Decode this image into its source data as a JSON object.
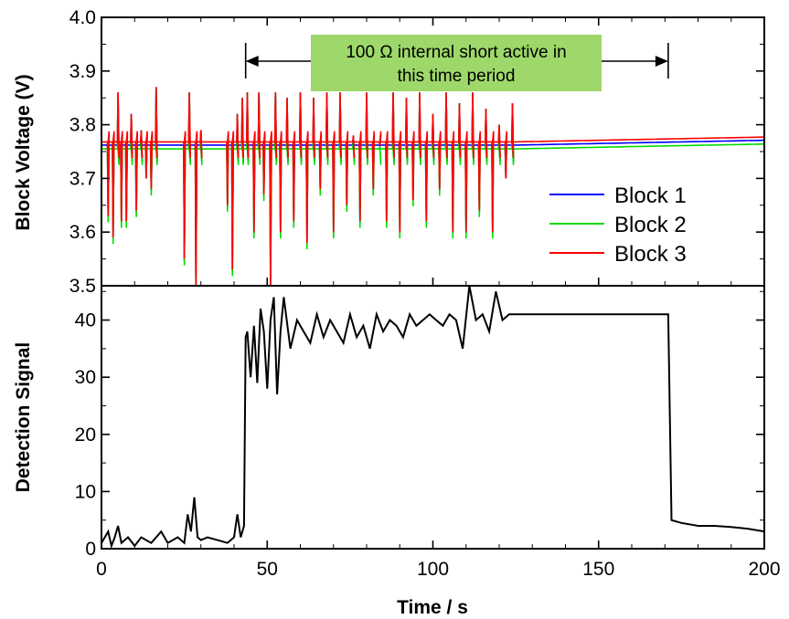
{
  "chart_data": [
    {
      "type": "line",
      "ylabel": "Block Voltage (V)",
      "xlim": [
        0,
        200
      ],
      "ylim": [
        3.5,
        4.0
      ],
      "yticks": [
        "3.5",
        "3.6",
        "3.7",
        "3.8",
        "3.9",
        "4.0"
      ],
      "xticks": [
        "0",
        "50",
        "100",
        "150",
        "200"
      ],
      "annotation": {
        "line1": "100 Ω internal short active in",
        "line2": "this time period",
        "x_start": 43.5,
        "x_end": 171,
        "box_color": "#9ed86a"
      },
      "legend_position": "lower-right",
      "series": [
        {
          "name": "Block 1",
          "color": "#0000ff",
          "baseline": 3.762
        },
        {
          "name": "Block 2",
          "color": "#00dd00",
          "baseline": 3.755
        },
        {
          "name": "Block 3",
          "color": "#ff0000",
          "baseline": 3.768
        }
      ],
      "spikes": [
        [
          2,
          3.63
        ],
        [
          3.5,
          3.59
        ],
        [
          5,
          3.86
        ],
        [
          6,
          3.62
        ],
        [
          7.5,
          3.62
        ],
        [
          9,
          3.82
        ],
        [
          10.5,
          3.64
        ],
        [
          12,
          3.79
        ],
        [
          13.5,
          3.7
        ],
        [
          15,
          3.68
        ],
        [
          16.5,
          3.87
        ],
        [
          25,
          3.55
        ],
        [
          26.5,
          3.86
        ],
        [
          28.5,
          3.5
        ],
        [
          30,
          3.79
        ],
        [
          38,
          3.65
        ],
        [
          39.5,
          3.53
        ],
        [
          41,
          3.82
        ],
        [
          42.5,
          3.85
        ],
        [
          44,
          3.86
        ],
        [
          46,
          3.6
        ],
        [
          47.5,
          3.86
        ],
        [
          49,
          3.67
        ],
        [
          51,
          3.5
        ],
        [
          52.5,
          3.86
        ],
        [
          54,
          3.6
        ],
        [
          56,
          3.85
        ],
        [
          58,
          3.62
        ],
        [
          60,
          3.86
        ],
        [
          62,
          3.58
        ],
        [
          64,
          3.85
        ],
        [
          66,
          3.68
        ],
        [
          68,
          3.86
        ],
        [
          70,
          3.6
        ],
        [
          72,
          3.86
        ],
        [
          74,
          3.65
        ],
        [
          76,
          3.78
        ],
        [
          78,
          3.62
        ],
        [
          80,
          3.86
        ],
        [
          82,
          3.68
        ],
        [
          84,
          3.76
        ],
        [
          86,
          3.62
        ],
        [
          88,
          3.86
        ],
        [
          90,
          3.6
        ],
        [
          92,
          3.85
        ],
        [
          94,
          3.66
        ],
        [
          96,
          3.86
        ],
        [
          98,
          3.62
        ],
        [
          100,
          3.82
        ],
        [
          102,
          3.68
        ],
        [
          104,
          3.86
        ],
        [
          106,
          3.6
        ],
        [
          108,
          3.84
        ],
        [
          110,
          3.6
        ],
        [
          112,
          3.86
        ],
        [
          114,
          3.64
        ],
        [
          116,
          3.83
        ],
        [
          118,
          3.6
        ],
        [
          120,
          3.8
        ],
        [
          122,
          3.7
        ],
        [
          124,
          3.84
        ]
      ]
    },
    {
      "type": "line",
      "ylabel": "Detection Signal",
      "xlabel": "Time / s",
      "xlim": [
        0,
        200
      ],
      "ylim": [
        0,
        46
      ],
      "yticks": [
        "0",
        "10",
        "20",
        "30",
        "40"
      ],
      "xticks": [
        "0",
        "50",
        "100",
        "150",
        "200"
      ],
      "series": [
        {
          "name": "",
          "color": "#000000",
          "x": [
            0,
            2,
            3,
            4,
            5,
            6,
            8,
            10,
            12,
            15,
            18,
            20,
            23,
            25,
            26,
            27,
            28,
            29,
            30,
            32,
            35,
            38,
            40,
            41,
            42,
            43,
            43.5,
            44,
            45,
            46,
            47,
            48,
            49,
            50,
            51,
            52,
            53,
            54,
            55,
            57,
            59,
            61,
            63,
            65,
            67,
            69,
            71,
            73,
            75,
            77,
            79,
            81,
            83,
            85,
            87,
            89,
            91,
            93,
            95,
            97,
            99,
            101,
            103,
            105,
            107,
            109,
            111,
            113,
            115,
            117,
            119,
            121,
            123,
            125,
            130,
            135,
            140,
            145,
            150,
            155,
            160,
            165,
            168,
            170,
            171,
            172,
            175,
            180,
            185,
            190,
            195,
            200
          ],
          "y": [
            1,
            3,
            0.5,
            2,
            4,
            1,
            2,
            0.5,
            2,
            1,
            3,
            1,
            2,
            1,
            6,
            3,
            9,
            2,
            1.5,
            2,
            1.5,
            1,
            2,
            6,
            2,
            4,
            37,
            38,
            30,
            39,
            29,
            42,
            38,
            28,
            40,
            44,
            27,
            38,
            44,
            35,
            40,
            38,
            36,
            41,
            37,
            40,
            38,
            36,
            41,
            37,
            39,
            35,
            41,
            38,
            40,
            39,
            37,
            41,
            39,
            40,
            41,
            40,
            39,
            41,
            40,
            35,
            46,
            40,
            41,
            38,
            45,
            40,
            41,
            41,
            41,
            41,
            41,
            41,
            41,
            41,
            41,
            41,
            41,
            41,
            41,
            5,
            4.5,
            4,
            4,
            3.8,
            3.5,
            3
          ]
        }
      ]
    }
  ]
}
